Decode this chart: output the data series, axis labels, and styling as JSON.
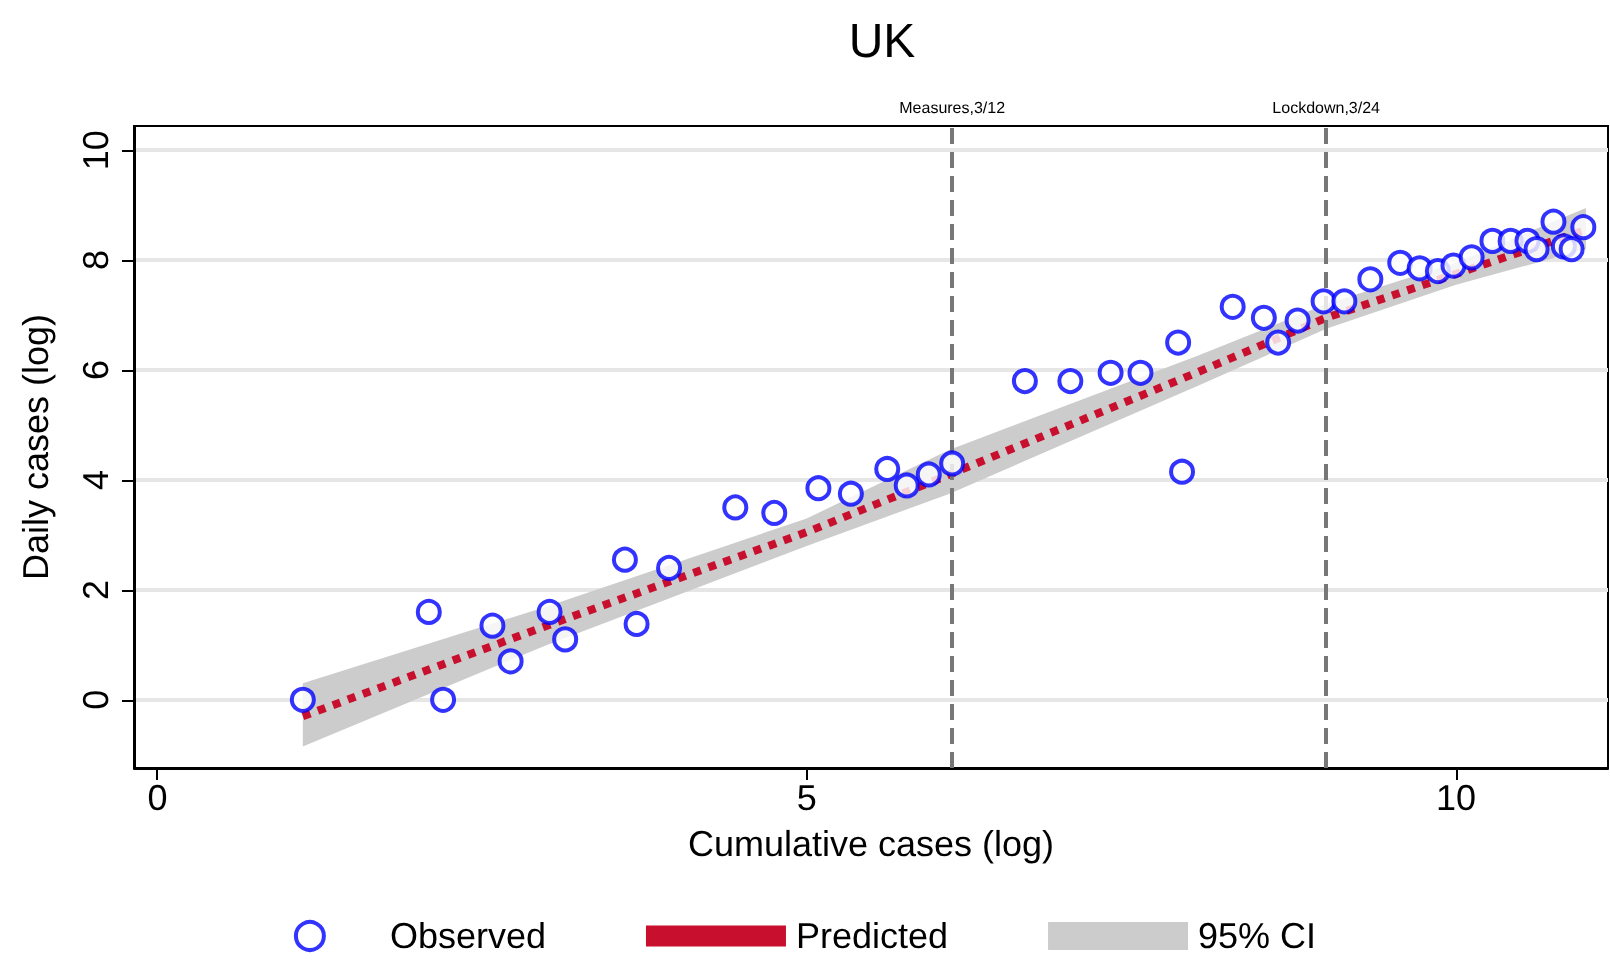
{
  "chart_data": {
    "type": "scatter",
    "title": "UK",
    "xlabel": "Cumulative cases (log)",
    "ylabel": "Daily cases (log)",
    "xlim": [
      -0.18,
      11.17
    ],
    "ylim": [
      -1.24,
      10.44
    ],
    "xticks": [
      0,
      5,
      10
    ],
    "yticks": [
      0,
      2,
      4,
      6,
      8,
      10
    ],
    "grid": "y",
    "legend": "bottom",
    "series": [
      {
        "name": "Observed",
        "marker": "circle",
        "color": "#0000ff",
        "x": [
          1.12,
          2.09,
          2.2,
          2.58,
          2.72,
          3.02,
          3.14,
          3.6,
          3.69,
          3.94,
          4.45,
          4.75,
          5.09,
          5.34,
          5.62,
          5.77,
          5.94,
          6.12,
          6.68,
          7.03,
          7.34,
          7.57,
          7.86,
          7.89,
          8.28,
          8.52,
          8.63,
          8.78,
          8.98,
          9.14,
          9.34,
          9.57,
          9.72,
          9.86,
          9.98,
          10.12,
          10.28,
          10.42,
          10.55,
          10.62,
          10.75,
          10.83,
          10.89,
          10.98
        ],
        "values": [
          0,
          1.6,
          0,
          1.35,
          0.7,
          1.6,
          1.1,
          2.55,
          1.38,
          2.4,
          3.5,
          3.4,
          3.85,
          3.75,
          4.2,
          3.9,
          4.1,
          4.3,
          5.8,
          5.8,
          5.95,
          5.95,
          6.5,
          4.15,
          7.15,
          6.95,
          6.5,
          6.9,
          7.25,
          7.25,
          7.65,
          7.95,
          7.85,
          7.8,
          7.9,
          8.05,
          8.35,
          8.35,
          8.35,
          8.2,
          8.7,
          8.25,
          8.2,
          8.6
        ]
      },
      {
        "name": "Predicted",
        "type": "line",
        "line_style": "dotted",
        "marker": "none",
        "color": "#c8102e",
        "x": [
          1.12,
          3,
          5,
          6.1,
          8,
          9,
          10,
          11
        ],
        "values": [
          -0.3,
          1.35,
          3.05,
          4.1,
          5.95,
          6.95,
          7.75,
          8.55
        ]
      },
      {
        "name": "95% CI",
        "type": "line",
        "color": "#cccccc",
        "x": [
          1.12,
          3,
          5,
          6.1,
          8,
          9,
          10,
          11
        ],
        "values": [
          null,
          null,
          null,
          null,
          null,
          null,
          null,
          null
        ],
        "lower": [
          -0.85,
          1.0,
          2.8,
          3.75,
          5.7,
          6.75,
          7.55,
          8.2
        ],
        "upper": [
          0.3,
          1.7,
          3.3,
          4.55,
          6.25,
          7.2,
          7.95,
          8.95
        ]
      }
    ],
    "ref_lines": [
      {
        "axis": "x",
        "value": 6.12,
        "label": "Measures,3/12",
        "color": "#777777",
        "line_style": "dashed"
      },
      {
        "axis": "x",
        "value": 9.0,
        "label": "Lockdown,3/24",
        "color": "#777777",
        "line_style": "dashed"
      }
    ]
  }
}
